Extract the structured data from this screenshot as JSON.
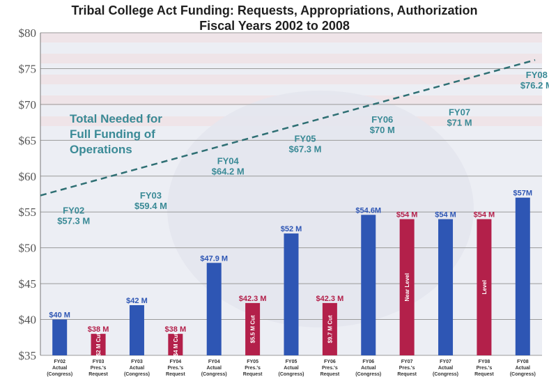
{
  "chart_data": {
    "type": "bar",
    "title_line1": "Tribal College Act Funding: Requests, Appropriations, Authorization",
    "title_line2": "Fiscal Years 2002 to 2008",
    "ylim": [
      35,
      80
    ],
    "yticks": [
      "$35",
      "$40",
      "$45",
      "$50",
      "$55",
      "$60",
      "$65",
      "$70",
      "$75",
      "$80"
    ],
    "grid": true,
    "colors": {
      "actual": "#2e56b4",
      "request": "#b3204a",
      "line": "#2e6f73",
      "label_teal": "#3a8a96"
    },
    "bars": [
      {
        "cat_line1": "FY02",
        "cat_line2": "Actual",
        "cat_line3": "(Congress)",
        "value": 40,
        "kind": "actual",
        "label": "$40 M",
        "inside": ""
      },
      {
        "cat_line1": "FY03",
        "cat_line2": "Pres.'s",
        "cat_line3": "Request",
        "value": 38,
        "kind": "request",
        "label": "$38 M",
        "inside": "$2 M Cut"
      },
      {
        "cat_line1": "FY03",
        "cat_line2": "Actual",
        "cat_line3": "(Congress)",
        "value": 42,
        "kind": "actual",
        "label": "$42 M",
        "inside": ""
      },
      {
        "cat_line1": "FY04",
        "cat_line2": "Pres.'s",
        "cat_line3": "Request",
        "value": 38,
        "kind": "request",
        "label": "$38 M",
        "inside": "$4 M Cut"
      },
      {
        "cat_line1": "FY04",
        "cat_line2": "Actual",
        "cat_line3": "(Congress)",
        "value": 47.9,
        "kind": "actual",
        "label": "$47.9 M",
        "inside": ""
      },
      {
        "cat_line1": "FY05",
        "cat_line2": "Pres.'s",
        "cat_line3": "Request",
        "value": 42.3,
        "kind": "request",
        "label": "$42.3 M",
        "inside": "$5.5 M Cut"
      },
      {
        "cat_line1": "FY05",
        "cat_line2": "Actual",
        "cat_line3": "(Congress)",
        "value": 52,
        "kind": "actual",
        "label": "$52 M",
        "inside": ""
      },
      {
        "cat_line1": "FY06",
        "cat_line2": "Pres.'s",
        "cat_line3": "Request",
        "value": 42.3,
        "kind": "request",
        "label": "$42.3 M",
        "inside": "$9.7 M Cut"
      },
      {
        "cat_line1": "FY06",
        "cat_line2": "Actual",
        "cat_line3": "(Congress)",
        "value": 54.6,
        "kind": "actual",
        "label": "$54.6M",
        "inside": ""
      },
      {
        "cat_line1": "FY07",
        "cat_line2": "Pres.'s",
        "cat_line3": "Request",
        "value": 54,
        "kind": "request",
        "label": "$54 M",
        "inside": "Near Level"
      },
      {
        "cat_line1": "FY07",
        "cat_line2": "Actual",
        "cat_line3": "(Congress)",
        "value": 54,
        "kind": "actual",
        "label": "$54 M",
        "inside": ""
      },
      {
        "cat_line1": "FY08",
        "cat_line2": "Pres.'s",
        "cat_line3": "Request",
        "value": 54,
        "kind": "request",
        "label": "$54 M",
        "inside": "Level"
      },
      {
        "cat_line1": "FY08",
        "cat_line2": "Actual",
        "cat_line3": "(Congress)",
        "value": 57,
        "kind": "actual",
        "label": "$57M",
        "inside": ""
      }
    ],
    "needed_line": {
      "name_line1": "Total Needed for",
      "name_line2": "Full Funding of",
      "name_line3": "Operations",
      "points": [
        {
          "year": "FY02",
          "value": 57.3,
          "value_label": "$57.3 M"
        },
        {
          "year": "FY03",
          "value": 59.4,
          "value_label": "$59.4 M"
        },
        {
          "year": "FY04",
          "value": 64.2,
          "value_label": "$64.2 M"
        },
        {
          "year": "FY05",
          "value": 67.3,
          "value_label": "$67.3 M"
        },
        {
          "year": "FY06",
          "value": 70,
          "value_label": "$70 M"
        },
        {
          "year": "FY07",
          "value": 71,
          "value_label": "$71 M"
        },
        {
          "year": "FY08",
          "value": 76.2,
          "value_label": "$76.2 M"
        }
      ]
    }
  }
}
